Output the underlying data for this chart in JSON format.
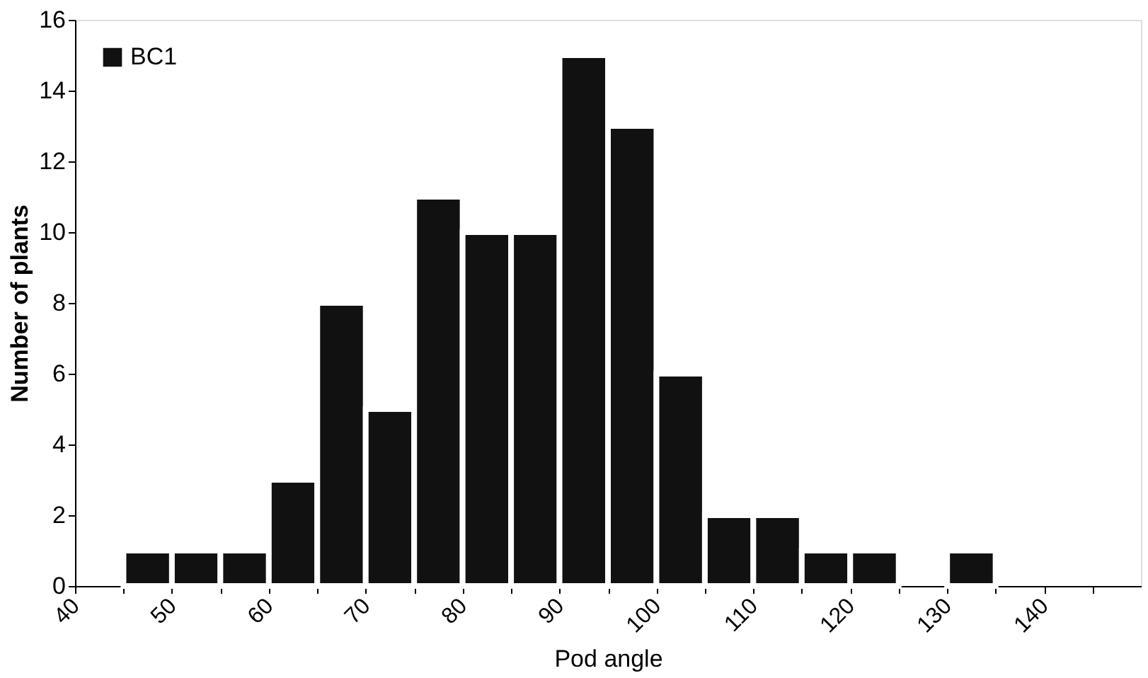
{
  "chart_data": {
    "type": "histogram",
    "xlabel": "Pod angle",
    "ylabel": "Number of plants",
    "bins": [
      45,
      50,
      55,
      60,
      65,
      70,
      75,
      80,
      85,
      90,
      95,
      100,
      105,
      110,
      115,
      120,
      125,
      130,
      135
    ],
    "series": [
      {
        "name": "BC1",
        "color": "#111111",
        "values": [
          1,
          1,
          1,
          3,
          8,
          5,
          11,
          10,
          10,
          15,
          13,
          6,
          2,
          2,
          1,
          1,
          0,
          1
        ]
      }
    ],
    "xlim": [
      40,
      150
    ],
    "xticks": [
      40,
      {
        "value": 45,
        "label": null
      },
      50,
      {
        "value": 55,
        "label": null
      },
      60,
      {
        "value": 65,
        "label": null
      },
      70,
      {
        "value": 75,
        "label": null
      },
      80,
      {
        "value": 85,
        "label": null
      },
      90,
      {
        "value": 95,
        "label": null
      },
      100,
      {
        "value": 105,
        "label": null
      },
      110,
      {
        "value": 115,
        "label": null
      },
      120,
      {
        "value": 125,
        "label": null
      },
      130,
      {
        "value": 135,
        "label": null
      },
      140,
      {
        "value": 145,
        "label": null
      }
    ],
    "ylim": [
      0,
      16
    ],
    "yticks": [
      0,
      2,
      4,
      6,
      8,
      10,
      12,
      14,
      16
    ],
    "grid": false,
    "legend": "top left"
  }
}
